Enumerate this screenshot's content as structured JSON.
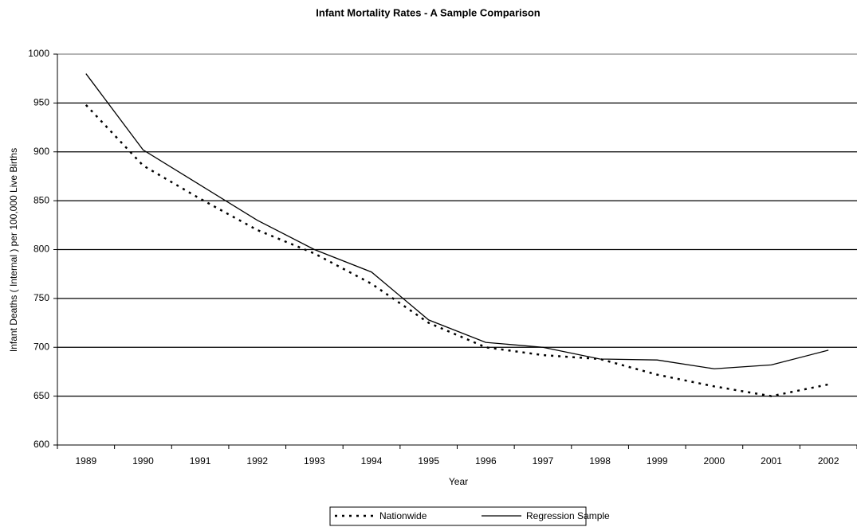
{
  "chart_data": {
    "type": "line",
    "title": "Infant Mortality Rates - A Sample Comparison",
    "x_label": "Year",
    "y_label": "Infant Deaths ( Internal ) per 100,000 Live Births",
    "categories": [
      "1989",
      "1990",
      "1991",
      "1992",
      "1993",
      "1994",
      "1995",
      "1996",
      "1997",
      "1998",
      "1999",
      "2000",
      "2001",
      "2002"
    ],
    "series": [
      {
        "name": "Nationwide",
        "color": "#000000",
        "dash": "dotted",
        "values": [
          948,
          886,
          852,
          820,
          796,
          765,
          725,
          700,
          692,
          688,
          672,
          660,
          650,
          662
        ]
      },
      {
        "name": "Regression Sample",
        "color": "#000000",
        "dash": "solid",
        "values": [
          980,
          902,
          866,
          830,
          800,
          777,
          728,
          705,
          700,
          688,
          687,
          678,
          682,
          697
        ]
      }
    ],
    "ylim": [
      600,
      1000
    ],
    "yticks": [
      600,
      650,
      700,
      750,
      800,
      850,
      900,
      950,
      1000
    ],
    "grid": true,
    "legend": "bottom"
  }
}
